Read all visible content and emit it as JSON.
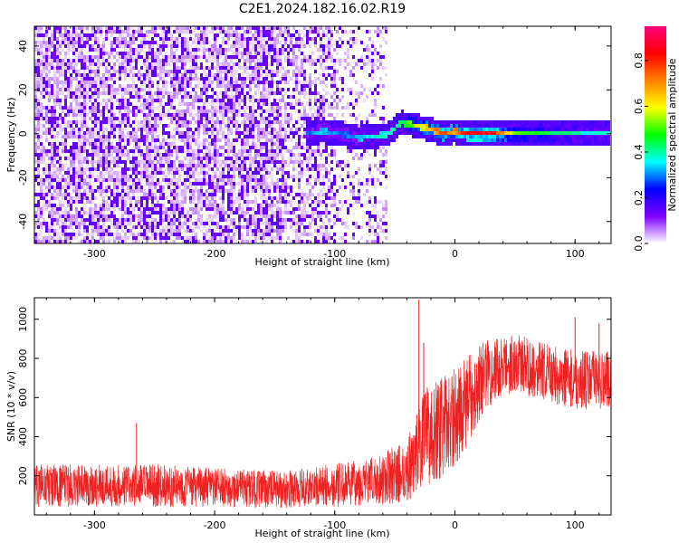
{
  "title": "C2E1.2024.182.16.02.R19",
  "chart_data": [
    {
      "type": "heatmap",
      "xlabel": "Height of straight line (km)",
      "ylabel": "Frequency (Hz)",
      "xlim": [
        -350,
        130
      ],
      "ylim": [
        -50,
        49
      ],
      "xticks": [
        -300,
        -200,
        -100,
        0,
        100
      ],
      "yticks": [
        -40,
        -20,
        0,
        20,
        40
      ],
      "colorbar": {
        "label": "Normalized spectral amplitude",
        "ticks": [
          0.0,
          0.2,
          0.4,
          0.6,
          0.8
        ],
        "tick_labels": [
          "0.0",
          "0.2",
          "0.4",
          "0.6",
          "0.8"
        ],
        "range": [
          0,
          0.95
        ],
        "colormap": [
          "#ffffff",
          "#7f00ff",
          "#0000ff",
          "#00ffff",
          "#00ff00",
          "#ffff00",
          "#ff8000",
          "#ff0000",
          "#ff0080"
        ]
      },
      "noise_region_end_km": -55,
      "signal_track": [
        {
          "x": -125,
          "y": 0,
          "amp": 0.3
        },
        {
          "x": -110,
          "y": 1,
          "amp": 0.35
        },
        {
          "x": -95,
          "y": 0,
          "amp": 0.3
        },
        {
          "x": -80,
          "y": -2,
          "amp": 0.35
        },
        {
          "x": -65,
          "y": -1,
          "amp": 0.4
        },
        {
          "x": -55,
          "y": 0,
          "amp": 0.4
        },
        {
          "x": -45,
          "y": 5,
          "amp": 0.45
        },
        {
          "x": -35,
          "y": 4,
          "amp": 0.6
        },
        {
          "x": -20,
          "y": 2,
          "amp": 0.7
        },
        {
          "x": -10,
          "y": 0,
          "amp": 0.8
        },
        {
          "x": 0,
          "y": 1,
          "amp": 0.75
        },
        {
          "x": 10,
          "y": 0,
          "amp": 0.9
        },
        {
          "x": 30,
          "y": 0,
          "amp": 0.9
        },
        {
          "x": 50,
          "y": 0,
          "amp": 0.55
        },
        {
          "x": 70,
          "y": 0,
          "amp": 0.5
        },
        {
          "x": 90,
          "y": 0,
          "amp": 0.45
        },
        {
          "x": 110,
          "y": 0,
          "amp": 0.4
        },
        {
          "x": 130,
          "y": 0,
          "amp": 0.4
        }
      ]
    },
    {
      "type": "line",
      "xlabel": "Height of straight line (km)",
      "ylabel": "SNR (10 * v/v)",
      "xlim": [
        -350,
        130
      ],
      "ylim": [
        0,
        1110
      ],
      "xticks": [
        -300,
        -200,
        -100,
        0,
        100
      ],
      "yticks": [
        200,
        400,
        600,
        800,
        1000
      ],
      "series": [
        {
          "color": "#ee2222",
          "envelope": [
            {
              "x": -350,
              "mean": 150,
              "spread": 110
            },
            {
              "x": -250,
              "mean": 150,
              "spread": 110
            },
            {
              "x": -200,
              "mean": 140,
              "spread": 100
            },
            {
              "x": -140,
              "mean": 130,
              "spread": 95
            },
            {
              "x": -100,
              "mean": 150,
              "spread": 110
            },
            {
              "x": -70,
              "mean": 170,
              "spread": 120
            },
            {
              "x": -40,
              "mean": 220,
              "spread": 160
            },
            {
              "x": -25,
              "mean": 400,
              "spread": 250
            },
            {
              "x": -10,
              "mean": 450,
              "spread": 260
            },
            {
              "x": 0,
              "mean": 500,
              "spread": 250
            },
            {
              "x": 10,
              "mean": 580,
              "spread": 230
            },
            {
              "x": 25,
              "mean": 720,
              "spread": 180
            },
            {
              "x": 50,
              "mean": 780,
              "spread": 150
            },
            {
              "x": 80,
              "mean": 720,
              "spread": 150
            },
            {
              "x": 100,
              "mean": 690,
              "spread": 150
            },
            {
              "x": 130,
              "mean": 690,
              "spread": 150
            }
          ],
          "spikes": [
            {
              "x": -30,
              "y": 1100
            },
            {
              "x": -26,
              "y": 880
            },
            {
              "x": -265,
              "y": 470
            },
            {
              "x": 100,
              "y": 1010
            },
            {
              "x": 120,
              "y": 980
            }
          ]
        }
      ]
    }
  ]
}
